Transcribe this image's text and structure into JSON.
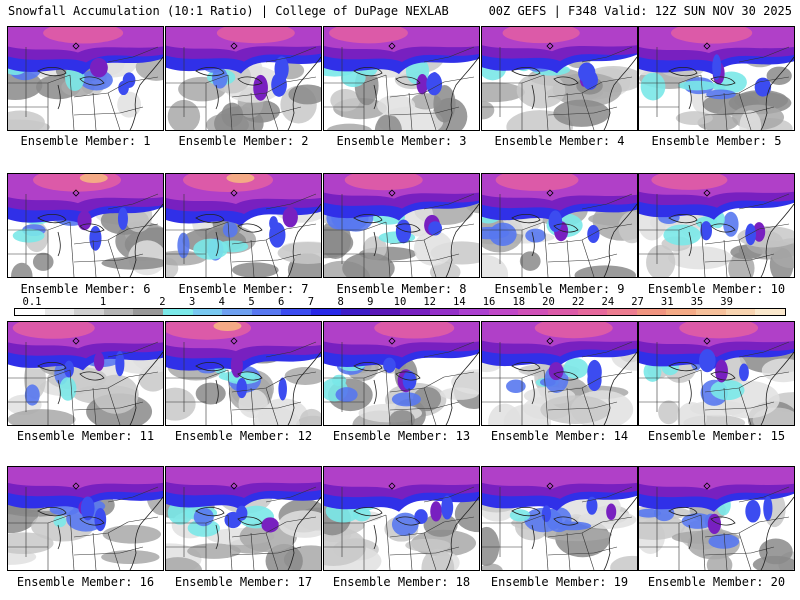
{
  "header": {
    "title": "Snowfall Accumulation (10:1 Ratio) | College of DuPage NEXLAB",
    "valid": "00Z GEFS | F348 Valid: 12Z SUN NOV 30 2025"
  },
  "colorbar": {
    "labels": [
      "0.1",
      "1",
      "2",
      "3",
      "4",
      "5",
      "6",
      "7",
      "8",
      "9",
      "10",
      "12",
      "14",
      "16",
      "18",
      "20",
      "22",
      "24",
      "27",
      "31",
      "35",
      "39"
    ],
    "colors": [
      "#ffffff",
      "#e8e8e8",
      "#d0d0d0",
      "#b4b4b4",
      "#989898",
      "#7ae8e8",
      "#78c8f0",
      "#6ea0f0",
      "#5878f0",
      "#3c4cf0",
      "#2828e8",
      "#3e1cc8",
      "#5a18b8",
      "#7820c0",
      "#9430c8",
      "#ac40d0",
      "#c048c8",
      "#d050b8",
      "#dc5aa8",
      "#e6689c",
      "#ec7c90",
      "#f09480",
      "#f4aa86",
      "#f6c09a",
      "#f8d4b0",
      "#fae8cc"
    ]
  },
  "members": [
    {
      "label": "Ensemble Member: 1",
      "intensity": 0.75,
      "south": 0.35
    },
    {
      "label": "Ensemble Member: 2",
      "intensity": 0.7,
      "south": 0.3
    },
    {
      "label": "Ensemble Member: 3",
      "intensity": 0.72,
      "south": 0.35
    },
    {
      "label": "Ensemble Member: 4",
      "intensity": 0.68,
      "south": 0.4
    },
    {
      "label": "Ensemble Member: 5",
      "intensity": 0.78,
      "south": 0.7
    },
    {
      "label": "Ensemble Member: 6",
      "intensity": 0.95,
      "south": 0.55
    },
    {
      "label": "Ensemble Member: 7",
      "intensity": 1.0,
      "south": 0.85
    },
    {
      "label": "Ensemble Member: 8",
      "intensity": 0.7,
      "south": 0.5
    },
    {
      "label": "Ensemble Member: 9",
      "intensity": 0.82,
      "south": 0.5
    },
    {
      "label": "Ensemble Member: 10",
      "intensity": 0.65,
      "south": 0.55
    },
    {
      "label": "Ensemble Member: 11",
      "intensity": 0.8,
      "south": 0.65
    },
    {
      "label": "Ensemble Member: 12",
      "intensity": 0.95,
      "south": 0.6
    },
    {
      "label": "Ensemble Member: 13",
      "intensity": 0.75,
      "south": 0.75
    },
    {
      "label": "Ensemble Member: 14",
      "intensity": 0.7,
      "south": 0.55
    },
    {
      "label": "Ensemble Member: 15",
      "intensity": 0.72,
      "south": 0.7
    },
    {
      "label": "Ensemble Member: 16",
      "intensity": 0.55,
      "south": 0.35
    },
    {
      "label": "Ensemble Member: 17",
      "intensity": 0.5,
      "south": 0.5
    },
    {
      "label": "Ensemble Member: 18",
      "intensity": 0.6,
      "south": 0.4
    },
    {
      "label": "Ensemble Member: 19",
      "intensity": 0.55,
      "south": 0.45
    },
    {
      "label": "Ensemble Member: 20",
      "intensity": 0.6,
      "south": 0.8
    }
  ]
}
